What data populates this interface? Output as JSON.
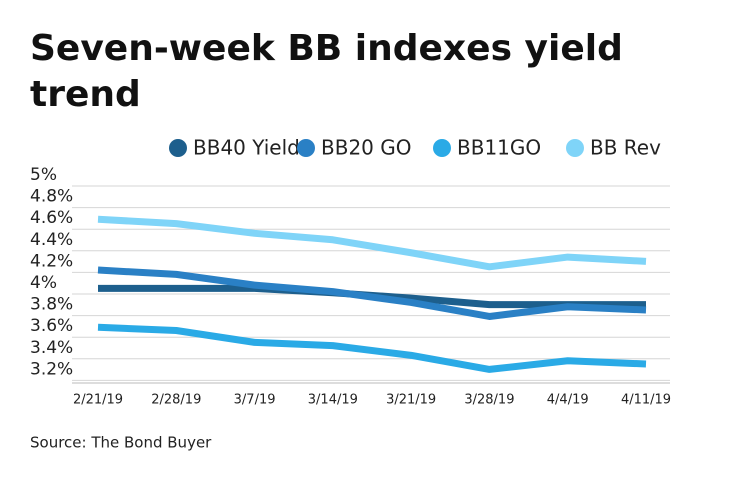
{
  "chart_data": {
    "type": "line",
    "title": "Seven-week BB indexes yield trend",
    "source": "Source: The Bond Buyer",
    "x": [
      "2/21/19",
      "2/28/19",
      "3/7/19",
      "3/14/19",
      "3/21/19",
      "3/28/19",
      "4/4/19",
      "4/11/19"
    ],
    "series": [
      {
        "name": "BB40 Yield",
        "color": "#1d5f8d",
        "values": [
          3.95,
          3.95,
          3.95,
          3.91,
          3.86,
          3.8,
          3.8,
          3.8
        ]
      },
      {
        "name": "BB20 GO",
        "color": "#2a80c5",
        "values": [
          4.12,
          4.08,
          3.98,
          3.92,
          3.82,
          3.69,
          3.78,
          3.75
        ]
      },
      {
        "name": "BB11GO",
        "color": "#2aaae6",
        "values": [
          3.59,
          3.56,
          3.45,
          3.42,
          3.33,
          3.2,
          3.28,
          3.25
        ]
      },
      {
        "name": "BB Rev",
        "color": "#7fd4f8",
        "values": [
          4.59,
          4.55,
          4.46,
          4.4,
          4.28,
          4.15,
          4.24,
          4.2
        ]
      }
    ],
    "ylim": [
      3.0,
      5.0
    ],
    "yticks": [
      {
        "value": 5,
        "label": "5%"
      },
      {
        "value": 4.8,
        "label": "4.8%"
      },
      {
        "value": 4.6,
        "label": "4.6%"
      },
      {
        "value": 4.4,
        "label": "4.4%"
      },
      {
        "value": 4.2,
        "label": "4.2%"
      },
      {
        "value": 4,
        "label": "4%"
      },
      {
        "value": 3.8,
        "label": "3.8%"
      },
      {
        "value": 3.6,
        "label": "3.6%"
      },
      {
        "value": 3.4,
        "label": "3.4%"
      },
      {
        "value": 3.2,
        "label": "3.2%"
      }
    ],
    "grid": true
  }
}
